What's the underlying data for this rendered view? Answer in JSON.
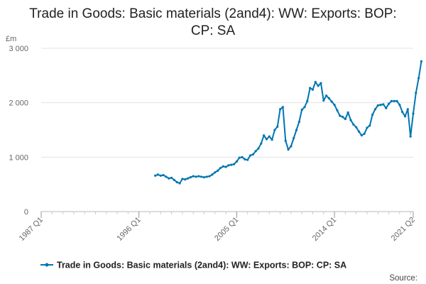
{
  "chart_data": {
    "type": "line",
    "title_lines": [
      "Trade in Goods: Basic materials (2and4): WW: Exports: BOP:",
      "CP: SA"
    ],
    "ylabel": "£m",
    "ylim": [
      0,
      3000
    ],
    "yticks": [
      0,
      1000,
      2000,
      3000
    ],
    "ytick_labels": [
      "0",
      "1 000",
      "2 000",
      "3 000"
    ],
    "x_start": "1987 Q1",
    "x_end": "2021 Q2",
    "xtick_labels": [
      "1987 Q1",
      "1996 Q1",
      "2005 Q1",
      "2014 Q1",
      "2021 Q2"
    ],
    "grid": "horizontal",
    "legend_position": "bottom",
    "series": [
      {
        "name": "Trade in Goods: Basic materials (2and4): WW: Exports: BOP: CP: SA",
        "color": "#0075b0",
        "start": "1997 Q3",
        "values": [
          660,
          680,
          660,
          670,
          640,
          610,
          620,
          580,
          540,
          520,
          600,
          590,
          610,
          630,
          650,
          640,
          650,
          640,
          630,
          640,
          650,
          680,
          720,
          750,
          800,
          830,
          820,
          850,
          860,
          870,
          920,
          990,
          1000,
          960,
          950,
          1030,
          1050,
          1110,
          1160,
          1250,
          1400,
          1330,
          1380,
          1320,
          1500,
          1560,
          1880,
          1920,
          1300,
          1140,
          1200,
          1350,
          1500,
          1650,
          1870,
          1920,
          2030,
          2270,
          2240,
          2380,
          2310,
          2360,
          2040,
          2130,
          2080,
          2020,
          1960,
          1860,
          1760,
          1740,
          1700,
          1820,
          1680,
          1600,
          1550,
          1470,
          1400,
          1430,
          1540,
          1580,
          1780,
          1880,
          1950,
          1960,
          1970,
          1900,
          1980,
          2030,
          2030,
          2030,
          1960,
          1830,
          1750,
          1880,
          1380,
          1800,
          2180,
          2450,
          2760
        ]
      }
    ]
  },
  "source_label": "Source:"
}
